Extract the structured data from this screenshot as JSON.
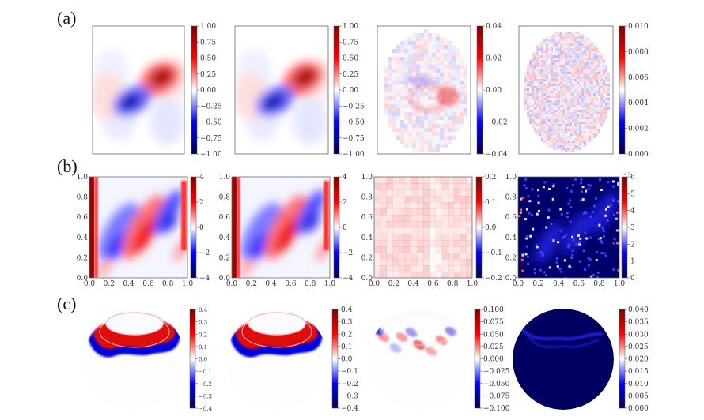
{
  "chart_data": {
    "type": "heatmap",
    "colormap": [
      "#00004c",
      "#0000ff",
      "#ffffff",
      "#ff0000",
      "#7f0000"
    ],
    "rows": [
      {
        "label": "(a)",
        "panels": [
          {
            "colorbar_ticks": [
              "1.00",
              "0.75",
              "0.50",
              "0.25",
              "0.00",
              "−0.25",
              "−0.50",
              "−0.75",
              "−1.00"
            ],
            "clim": [
              -1,
              1
            ]
          },
          {
            "colorbar_ticks": [
              "1.00",
              "0.75",
              "0.50",
              "0.25",
              "0.00",
              "−0.25",
              "−0.50",
              "−0.75",
              "−1.00"
            ],
            "clim": [
              -1,
              1
            ]
          },
          {
            "colorbar_ticks": [
              "0.04",
              "0.02",
              "0.00",
              "−0.02",
              "−0.04"
            ],
            "clim": [
              -0.05,
              0.05
            ]
          },
          {
            "colorbar_ticks": [
              "0.010",
              "0.008",
              "0.006",
              "0.004",
              "0.002",
              "0.000"
            ],
            "clim": [
              0,
              0.01
            ]
          }
        ]
      },
      {
        "label": "(b)",
        "x_ticks": [
          "0.0",
          "0.2",
          "0.4",
          "0.6",
          "0.8",
          "1.0"
        ],
        "y_ticks": [
          "1.0",
          "0.8",
          "0.6",
          "0.4",
          "0.2",
          "0.0"
        ],
        "panels": [
          {
            "colorbar_ticks": [
              "4",
              "2",
              "0",
              "−2",
              "−4"
            ],
            "clim": [
              -4,
              4
            ]
          },
          {
            "colorbar_ticks": [
              "4",
              "2",
              "0",
              "−2",
              "−4"
            ],
            "clim": [
              -4,
              4
            ]
          },
          {
            "colorbar_ticks": [
              "0.2",
              "0.1",
              "0.0",
              "−0.1",
              "−0.2"
            ],
            "clim": [
              -0.2,
              0.2
            ]
          },
          {
            "colorbar_ticks": [
              "6",
              "5",
              "4",
              "3",
              "2",
              "1",
              "0"
            ],
            "clim": [
              0,
              6
            ],
            "colorbar_offset": "1e-3"
          }
        ]
      },
      {
        "label": "(c)",
        "panels": [
          {
            "colorbar_ticks": [
              "0.4",
              "0.3",
              "0.2",
              "0.1",
              "0.0",
              "−0.1",
              "−0.2",
              "−0.3",
              "−0.4"
            ],
            "clim": [
              -0.4,
              0.4
            ]
          },
          {
            "colorbar_ticks": [
              "0.4",
              "0.3",
              "0.2",
              "0.1",
              "0.0",
              "−0.1",
              "−0.2",
              "−0.3",
              "−0.4"
            ],
            "clim": [
              -0.4,
              0.4
            ]
          },
          {
            "colorbar_ticks": [
              "0.100",
              "0.075",
              "0.050",
              "0.025",
              "0.000",
              "−0.025",
              "−0.050",
              "−0.075",
              "−0.100"
            ],
            "clim": [
              -0.1,
              0.1
            ]
          },
          {
            "colorbar_ticks": [
              "0.040",
              "0.035",
              "0.030",
              "0.025",
              "0.020",
              "0.015",
              "0.010",
              "0.005",
              "0.000"
            ],
            "clim": [
              0,
              0.04
            ]
          }
        ]
      }
    ]
  }
}
